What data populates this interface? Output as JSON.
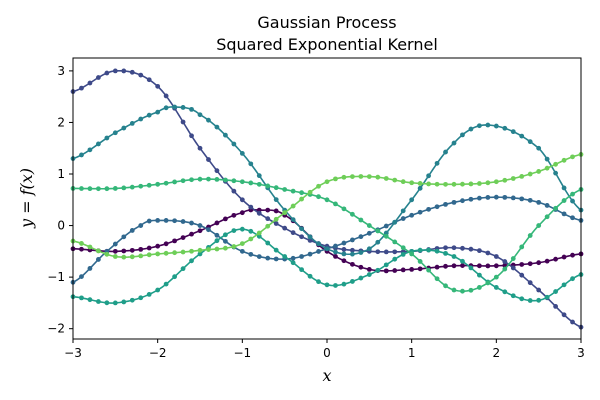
{
  "chart_data": {
    "type": "line",
    "title": "Gaussian Process",
    "subtitle": "Squared Exponential Kernel",
    "xlabel": "x",
    "ylabel": "y = f(x)",
    "xlim": [
      -3,
      3
    ],
    "ylim": [
      -2.2,
      3.25
    ],
    "xticks": [
      -3,
      -2,
      -1,
      0,
      1,
      2,
      3
    ],
    "yticks": [
      -2,
      -1,
      0,
      1,
      2,
      3
    ],
    "xtick_labels": [
      "−3",
      "−2",
      "−1",
      "0",
      "1",
      "2",
      "3"
    ],
    "ytick_labels": [
      "−2",
      "−1",
      "0",
      "1",
      "2",
      "3"
    ],
    "grid": false,
    "legend": "none",
    "series": [
      {
        "color": "#440154",
        "x": [
          -3.0,
          -2.5,
          -2.0,
          -1.5,
          -1.0,
          -0.8,
          -0.5,
          0.0,
          0.5,
          1.0,
          1.5,
          2.0,
          2.5,
          3.0
        ],
        "y": [
          -0.45,
          -0.5,
          -0.4,
          -0.1,
          0.25,
          0.3,
          0.2,
          -0.5,
          -0.85,
          -0.85,
          -0.78,
          -0.78,
          -0.72,
          -0.55
        ]
      },
      {
        "color": "#3e4a89",
        "x": [
          -3.0,
          -2.5,
          -2.0,
          -1.5,
          -1.0,
          -0.5,
          0.0,
          0.5,
          1.0,
          1.5,
          2.0,
          2.5,
          3.0
        ],
        "y": [
          2.6,
          3.0,
          2.7,
          1.5,
          0.5,
          -0.05,
          -0.4,
          -0.5,
          -0.5,
          -0.43,
          -0.6,
          -1.25,
          -1.97
        ]
      },
      {
        "color": "#31688e",
        "x": [
          -3.0,
          -2.6,
          -2.2,
          -2.0,
          -1.5,
          -1.0,
          -0.5,
          0.0,
          0.5,
          1.0,
          1.5,
          2.0,
          2.5,
          3.0
        ],
        "y": [
          -1.1,
          -0.5,
          0.0,
          0.1,
          0.0,
          -0.5,
          -0.65,
          -0.45,
          -0.15,
          0.2,
          0.45,
          0.55,
          0.45,
          0.1
        ]
      },
      {
        "color": "#26828e",
        "x": [
          -3.0,
          -2.5,
          -2.0,
          -1.8,
          -1.5,
          -1.0,
          -0.5,
          0.0,
          0.5,
          1.0,
          1.5,
          1.9,
          2.5,
          3.0
        ],
        "y": [
          1.3,
          1.8,
          2.2,
          2.3,
          2.15,
          1.4,
          0.3,
          -0.45,
          -0.45,
          0.5,
          1.6,
          1.95,
          1.5,
          0.3
        ]
      },
      {
        "color": "#1f9e89",
        "x": [
          -3.0,
          -2.5,
          -2.0,
          -1.5,
          -1.0,
          -0.5,
          0.0,
          0.5,
          1.0,
          1.5,
          2.0,
          2.5,
          3.0
        ],
        "y": [
          -1.38,
          -1.5,
          -1.25,
          -0.55,
          -0.07,
          -0.6,
          -1.15,
          -0.95,
          -0.5,
          -0.6,
          -1.2,
          -1.45,
          -0.95
        ]
      },
      {
        "color": "#35b779",
        "x": [
          -3.0,
          -2.5,
          -2.0,
          -1.5,
          -1.0,
          -0.5,
          0.0,
          0.5,
          1.0,
          1.5,
          2.0,
          2.5,
          3.0
        ],
        "y": [
          0.72,
          0.72,
          0.8,
          0.9,
          0.85,
          0.7,
          0.5,
          0.0,
          -0.55,
          -1.25,
          -1.0,
          0.0,
          0.7
        ]
      },
      {
        "color": "#6ece58",
        "x": [
          -3.0,
          -2.5,
          -2.0,
          -1.5,
          -1.0,
          -0.5,
          0.0,
          0.5,
          1.0,
          1.5,
          2.0,
          2.5,
          3.0
        ],
        "y": [
          -0.3,
          -0.6,
          -0.55,
          -0.48,
          -0.35,
          0.25,
          0.85,
          0.95,
          0.83,
          0.8,
          0.85,
          1.05,
          1.38
        ]
      }
    ]
  }
}
